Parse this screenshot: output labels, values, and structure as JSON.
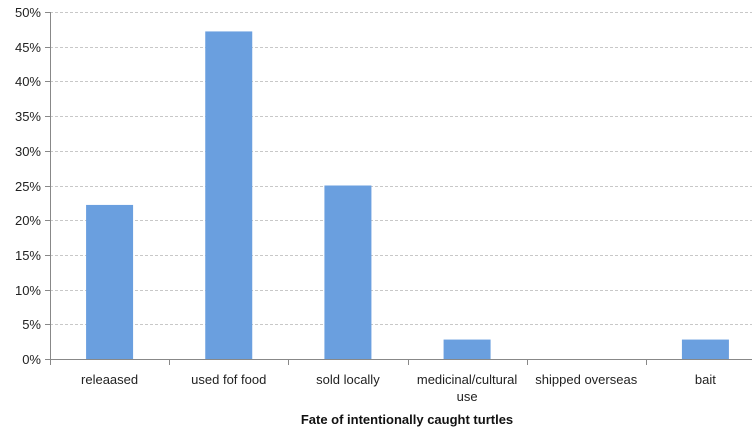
{
  "chart_data": {
    "type": "bar",
    "categories": [
      "releaased",
      "used fof food",
      "sold locally",
      "medicinal/cultural use",
      "shipped overseas",
      "bait"
    ],
    "category_lines": [
      [
        "releaased"
      ],
      [
        "used fof food"
      ],
      [
        "sold locally"
      ],
      [
        "medicinal/cultural",
        "use"
      ],
      [
        "shipped overseas"
      ],
      [
        "bait"
      ]
    ],
    "values": [
      0.222,
      0.472,
      0.25,
      0.028,
      0.0,
      0.028
    ],
    "title": "",
    "xlabel": "Fate of intentionally caught turtles",
    "ylabel": "",
    "ylim": [
      0,
      0.5
    ],
    "yticks": [
      0,
      0.05,
      0.1,
      0.15,
      0.2,
      0.25,
      0.3,
      0.35,
      0.4,
      0.45,
      0.5
    ],
    "ytick_labels": [
      "0%",
      "5%",
      "10%",
      "15%",
      "20%",
      "25%",
      "30%",
      "35%",
      "40%",
      "45%",
      "50%"
    ],
    "grid": true,
    "bar_color": "#6a9fdf",
    "grid_color": "#c8c8c8",
    "axis_color": "#888888"
  }
}
